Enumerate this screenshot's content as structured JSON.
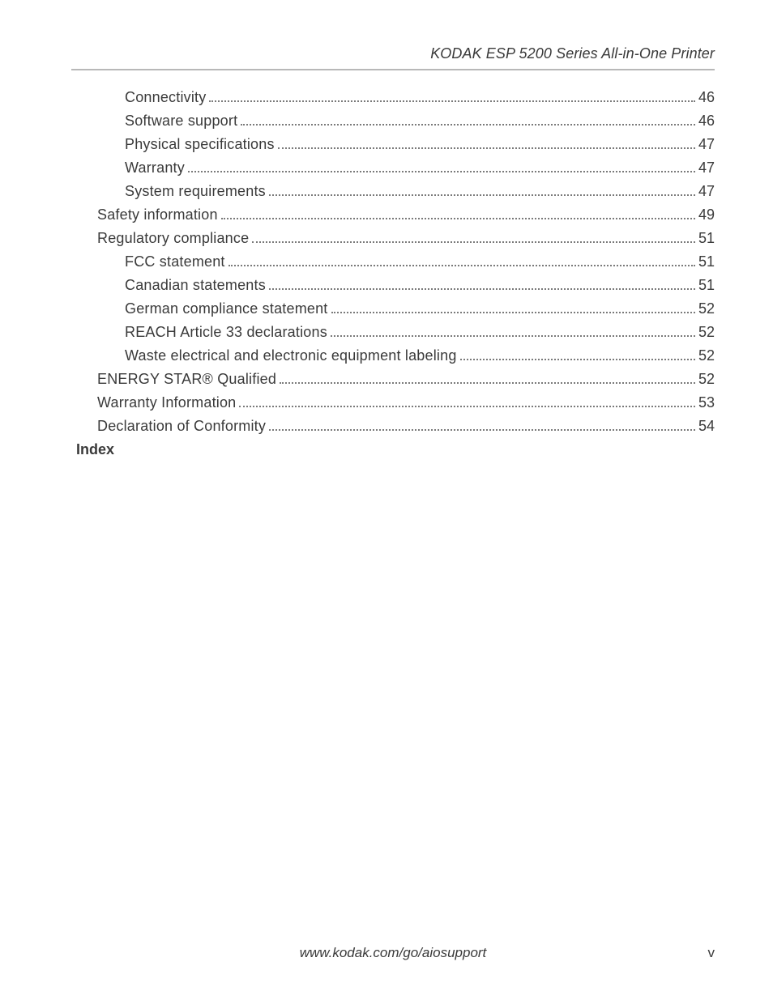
{
  "header": {
    "title": "KODAK ESP 5200 Series All-in-One Printer"
  },
  "toc": {
    "entries": [
      {
        "label": "Connectivity",
        "page": "46",
        "indent": 2
      },
      {
        "label": "Software support",
        "page": "46",
        "indent": 2
      },
      {
        "label": "Physical specifications",
        "page": "47",
        "indent": 2
      },
      {
        "label": "Warranty",
        "page": "47",
        "indent": 2
      },
      {
        "label": "System requirements",
        "page": "47",
        "indent": 2
      },
      {
        "label": "Safety information",
        "page": "49",
        "indent": 1
      },
      {
        "label": "Regulatory compliance",
        "page": "51",
        "indent": 1
      },
      {
        "label": "FCC statement",
        "page": "51",
        "indent": 2
      },
      {
        "label": "Canadian statements",
        "page": "51",
        "indent": 2
      },
      {
        "label": "German compliance statement",
        "page": "52",
        "indent": 2
      },
      {
        "label": "REACH Article 33 declarations",
        "page": "52",
        "indent": 2
      },
      {
        "label": "Waste electrical and electronic equipment labeling",
        "page": "52",
        "indent": 2
      },
      {
        "label": "ENERGY STAR® Qualified",
        "page": "52",
        "indent": 1
      },
      {
        "label": "Warranty Information",
        "page": "53",
        "indent": 1
      },
      {
        "label": "Declaration of Conformity",
        "page": "54",
        "indent": 1
      }
    ],
    "index_label": "Index"
  },
  "footer": {
    "url": "www.kodak.com/go/aiosupport",
    "page_roman": "v"
  }
}
